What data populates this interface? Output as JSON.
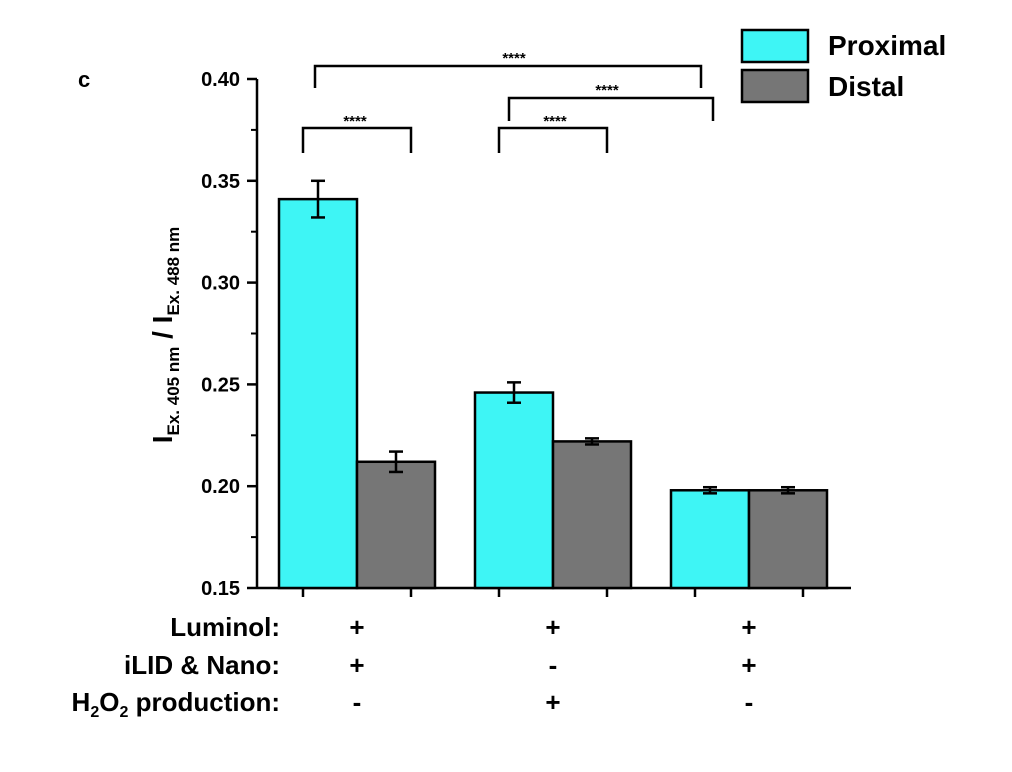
{
  "panel_label": "c",
  "ylabel": {
    "main1": "I",
    "sub1": "Ex. 405 nm",
    "slash": " / ",
    "main2": "I",
    "sub2": "Ex. 488 nm"
  },
  "condition_labels": {
    "row1": "Luminol:",
    "row2": "iLID & Nano:",
    "row3_h": "H",
    "row3_sub2a": "2",
    "row3_o": "O",
    "row3_sub2b": "2",
    "row3_rest": " production:"
  },
  "conditions": [
    [
      "+",
      "+",
      "+"
    ],
    [
      "+",
      "-",
      "+"
    ],
    [
      "-",
      "+",
      "-"
    ]
  ],
  "significance": [
    "****",
    "****",
    "****",
    "****"
  ],
  "colors": {
    "proximal": "#3ef5f5",
    "distal": "#767676"
  },
  "chart_data": {
    "type": "bar",
    "categories": [
      "",
      "",
      ""
    ],
    "series": [
      {
        "name": "Proximal",
        "values": [
          0.341,
          0.246,
          0.198
        ],
        "errors": [
          0.009,
          0.005,
          0.0015
        ]
      },
      {
        "name": "Distal",
        "values": [
          0.212,
          0.222,
          0.198
        ],
        "errors": [
          0.005,
          0.0015,
          0.0015
        ]
      }
    ],
    "ylim": [
      0.15,
      0.4
    ],
    "yticks": [
      "0.15",
      "0.20",
      "0.25",
      "0.30",
      "0.35",
      "0.40"
    ],
    "ytick_values": [
      0.15,
      0.2,
      0.25,
      0.3,
      0.35,
      0.4
    ],
    "legend_position": "top-right",
    "grid": false
  }
}
